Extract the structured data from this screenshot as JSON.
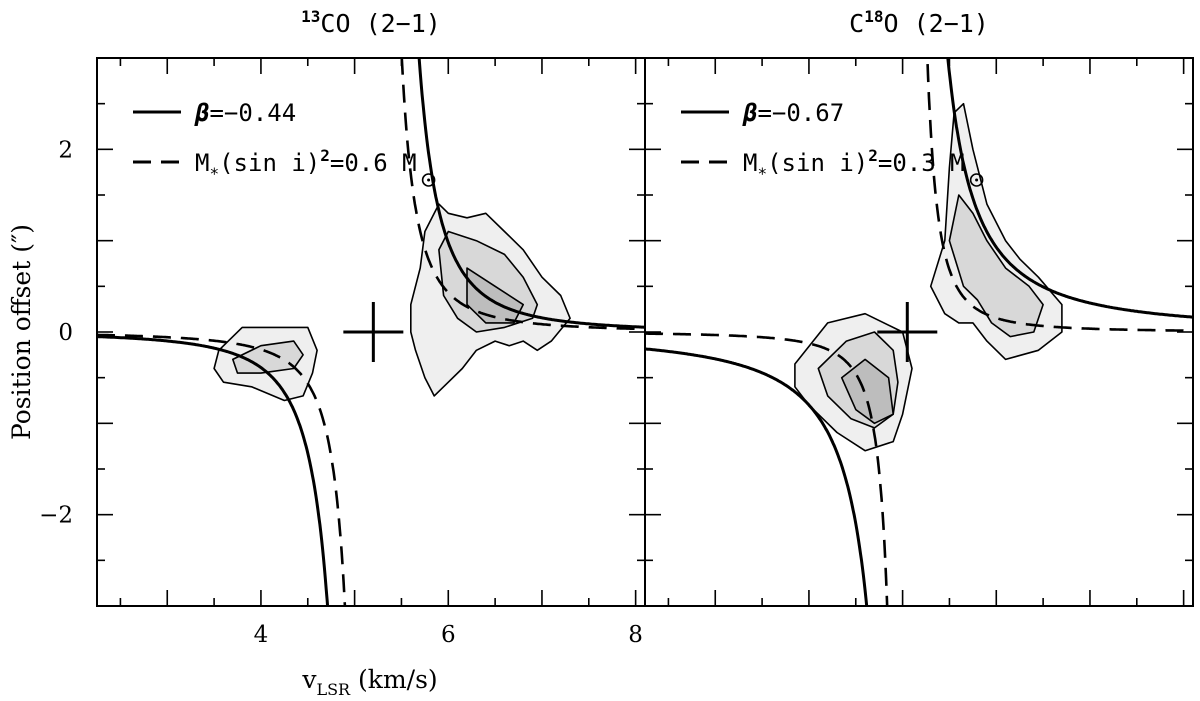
{
  "chart_data": [
    {
      "type": "contour",
      "title_parts": {
        "sup": "13",
        "main": "CO (2−1)"
      },
      "xlabel_parts": {
        "main": "v",
        "sub": "LSR",
        "rest": " (km/s)"
      },
      "ylabel": "Position offset (″)",
      "xlim": [
        2.25,
        8.1
      ],
      "ylim": [
        -3.0,
        3.0
      ],
      "xticks_labeled": [
        "4",
        "6",
        "8"
      ],
      "xticks_labeled_values": [
        4,
        6,
        8
      ],
      "yticks_labeled": [
        "−2",
        "0",
        "2"
      ],
      "yticks_labeled_values": [
        -2,
        0,
        2
      ],
      "legend": [
        {
          "style": "solid",
          "sym": "β",
          "label": "=−0.44"
        },
        {
          "style": "dashed",
          "pre": "M",
          "sub": "*",
          "mid": "(sin i)",
          "sup": "2",
          "post": "=0.6 M",
          "sun": true
        }
      ],
      "center_cross": {
        "v": 5.2,
        "offset": 0.0
      },
      "curves": {
        "solid": {
          "v0": 5.2,
          "k": -0.44,
          "A": 0.59
        },
        "dashed": {
          "v0": 5.2,
          "M_sin2i": 0.6
        }
      },
      "contours": [
        {
          "level": 1,
          "fill": "#efefef",
          "polygons": [
            [
              [
                3.55,
                -0.2
              ],
              [
                3.8,
                0.05
              ],
              [
                4.2,
                0.05
              ],
              [
                4.5,
                0.05
              ],
              [
                4.6,
                -0.2
              ],
              [
                4.55,
                -0.45
              ],
              [
                4.45,
                -0.7
              ],
              [
                4.25,
                -0.75
              ],
              [
                3.9,
                -0.6
              ],
              [
                3.6,
                -0.55
              ],
              [
                3.5,
                -0.4
              ]
            ],
            [
              [
                5.6,
                0.3
              ],
              [
                5.7,
                0.7
              ],
              [
                5.75,
                1.1
              ],
              [
                5.9,
                1.4
              ],
              [
                6.0,
                1.3
              ],
              [
                6.2,
                1.25
              ],
              [
                6.4,
                1.3
              ],
              [
                6.6,
                1.1
              ],
              [
                6.8,
                0.9
              ],
              [
                7.0,
                0.6
              ],
              [
                7.2,
                0.4
              ],
              [
                7.3,
                0.15
              ],
              [
                7.1,
                -0.1
              ],
              [
                6.95,
                -0.2
              ],
              [
                6.8,
                -0.1
              ],
              [
                6.65,
                -0.15
              ],
              [
                6.5,
                -0.1
              ],
              [
                6.3,
                -0.2
              ],
              [
                6.15,
                -0.4
              ],
              [
                6.0,
                -0.55
              ],
              [
                5.85,
                -0.7
              ],
              [
                5.75,
                -0.5
              ],
              [
                5.65,
                -0.2
              ],
              [
                5.6,
                0.0
              ]
            ]
          ]
        },
        {
          "level": 2,
          "fill": "#d8d8d8",
          "polygons": [
            [
              [
                3.7,
                -0.3
              ],
              [
                4.0,
                -0.15
              ],
              [
                4.35,
                -0.1
              ],
              [
                4.45,
                -0.25
              ],
              [
                4.35,
                -0.4
              ],
              [
                4.0,
                -0.45
              ],
              [
                3.75,
                -0.45
              ]
            ],
            [
              [
                5.9,
                0.9
              ],
              [
                6.0,
                1.1
              ],
              [
                6.3,
                1.0
              ],
              [
                6.6,
                0.85
              ],
              [
                6.8,
                0.6
              ],
              [
                6.95,
                0.3
              ],
              [
                6.9,
                0.15
              ],
              [
                6.6,
                0.05
              ],
              [
                6.3,
                0.0
              ],
              [
                6.1,
                0.15
              ],
              [
                5.95,
                0.4
              ]
            ]
          ]
        },
        {
          "level": 3,
          "fill": "#bdbdbd",
          "polygons": [
            [
              [
                6.2,
                0.7
              ],
              [
                6.5,
                0.5
              ],
              [
                6.8,
                0.3
              ],
              [
                6.7,
                0.1
              ],
              [
                6.4,
                0.1
              ],
              [
                6.2,
                0.3
              ]
            ]
          ]
        }
      ]
    },
    {
      "type": "contour",
      "title_parts": {
        "pre": "C",
        "sup": "18",
        "main": "O (2−1)"
      },
      "ylabel": "",
      "xlim": [
        2.25,
        8.1
      ],
      "ylim": [
        -3.0,
        3.0
      ],
      "xticks_labeled": [],
      "legend": [
        {
          "style": "solid",
          "sym": "β",
          "label": "=−0.67"
        },
        {
          "style": "dashed",
          "pre": "M",
          "sub": "*",
          "mid": "(sin i)",
          "sup": "2",
          "post": "=0.3 M",
          "sun": true
        }
      ],
      "center_cross": {
        "v": 5.05,
        "offset": 0.0
      },
      "curves": {
        "solid": {
          "v0": 5.05,
          "k": -0.67,
          "A": 0.86
        },
        "dashed": {
          "v0": 5.05,
          "M_sin2i": 0.3
        }
      },
      "contours": [
        {
          "level": 1,
          "fill": "#efefef",
          "polygons": [
            [
              [
                3.85,
                -0.35
              ],
              [
                4.2,
                0.1
              ],
              [
                4.6,
                0.2
              ],
              [
                5.0,
                0.0
              ],
              [
                5.1,
                -0.4
              ],
              [
                5.0,
                -0.9
              ],
              [
                4.9,
                -1.2
              ],
              [
                4.6,
                -1.3
              ],
              [
                4.3,
                -1.1
              ],
              [
                4.0,
                -0.8
              ],
              [
                3.85,
                -0.6
              ]
            ],
            [
              [
                5.3,
                0.5
              ],
              [
                5.45,
                1.0
              ],
              [
                5.5,
                1.8
              ],
              [
                5.55,
                2.4
              ],
              [
                5.65,
                2.5
              ],
              [
                5.75,
                2.0
              ],
              [
                5.9,
                1.4
              ],
              [
                6.1,
                1.0
              ],
              [
                6.25,
                0.8
              ],
              [
                6.45,
                0.6
              ],
              [
                6.7,
                0.3
              ],
              [
                6.7,
                0.0
              ],
              [
                6.45,
                -0.2
              ],
              [
                6.1,
                -0.3
              ],
              [
                5.9,
                -0.1
              ],
              [
                5.75,
                0.1
              ],
              [
                5.6,
                0.1
              ],
              [
                5.45,
                0.2
              ]
            ]
          ]
        },
        {
          "level": 2,
          "fill": "#d8d8d8",
          "polygons": [
            [
              [
                4.1,
                -0.4
              ],
              [
                4.4,
                -0.1
              ],
              [
                4.7,
                0.0
              ],
              [
                4.9,
                -0.2
              ],
              [
                4.95,
                -0.55
              ],
              [
                4.9,
                -0.9
              ],
              [
                4.7,
                -1.05
              ],
              [
                4.45,
                -0.95
              ],
              [
                4.2,
                -0.7
              ]
            ],
            [
              [
                5.5,
                1.0
              ],
              [
                5.6,
                1.5
              ],
              [
                5.75,
                1.3
              ],
              [
                5.9,
                1.0
              ],
              [
                6.1,
                0.7
              ],
              [
                6.35,
                0.5
              ],
              [
                6.5,
                0.3
              ],
              [
                6.4,
                0.0
              ],
              [
                6.15,
                -0.05
              ],
              [
                5.95,
                0.1
              ],
              [
                5.8,
                0.35
              ],
              [
                5.65,
                0.5
              ]
            ]
          ]
        },
        {
          "level": 3,
          "fill": "#bdbdbd",
          "polygons": [
            [
              [
                4.35,
                -0.5
              ],
              [
                4.6,
                -0.3
              ],
              [
                4.85,
                -0.5
              ],
              [
                4.9,
                -0.9
              ],
              [
                4.7,
                -1.0
              ],
              [
                4.5,
                -0.85
              ]
            ]
          ]
        }
      ]
    }
  ]
}
